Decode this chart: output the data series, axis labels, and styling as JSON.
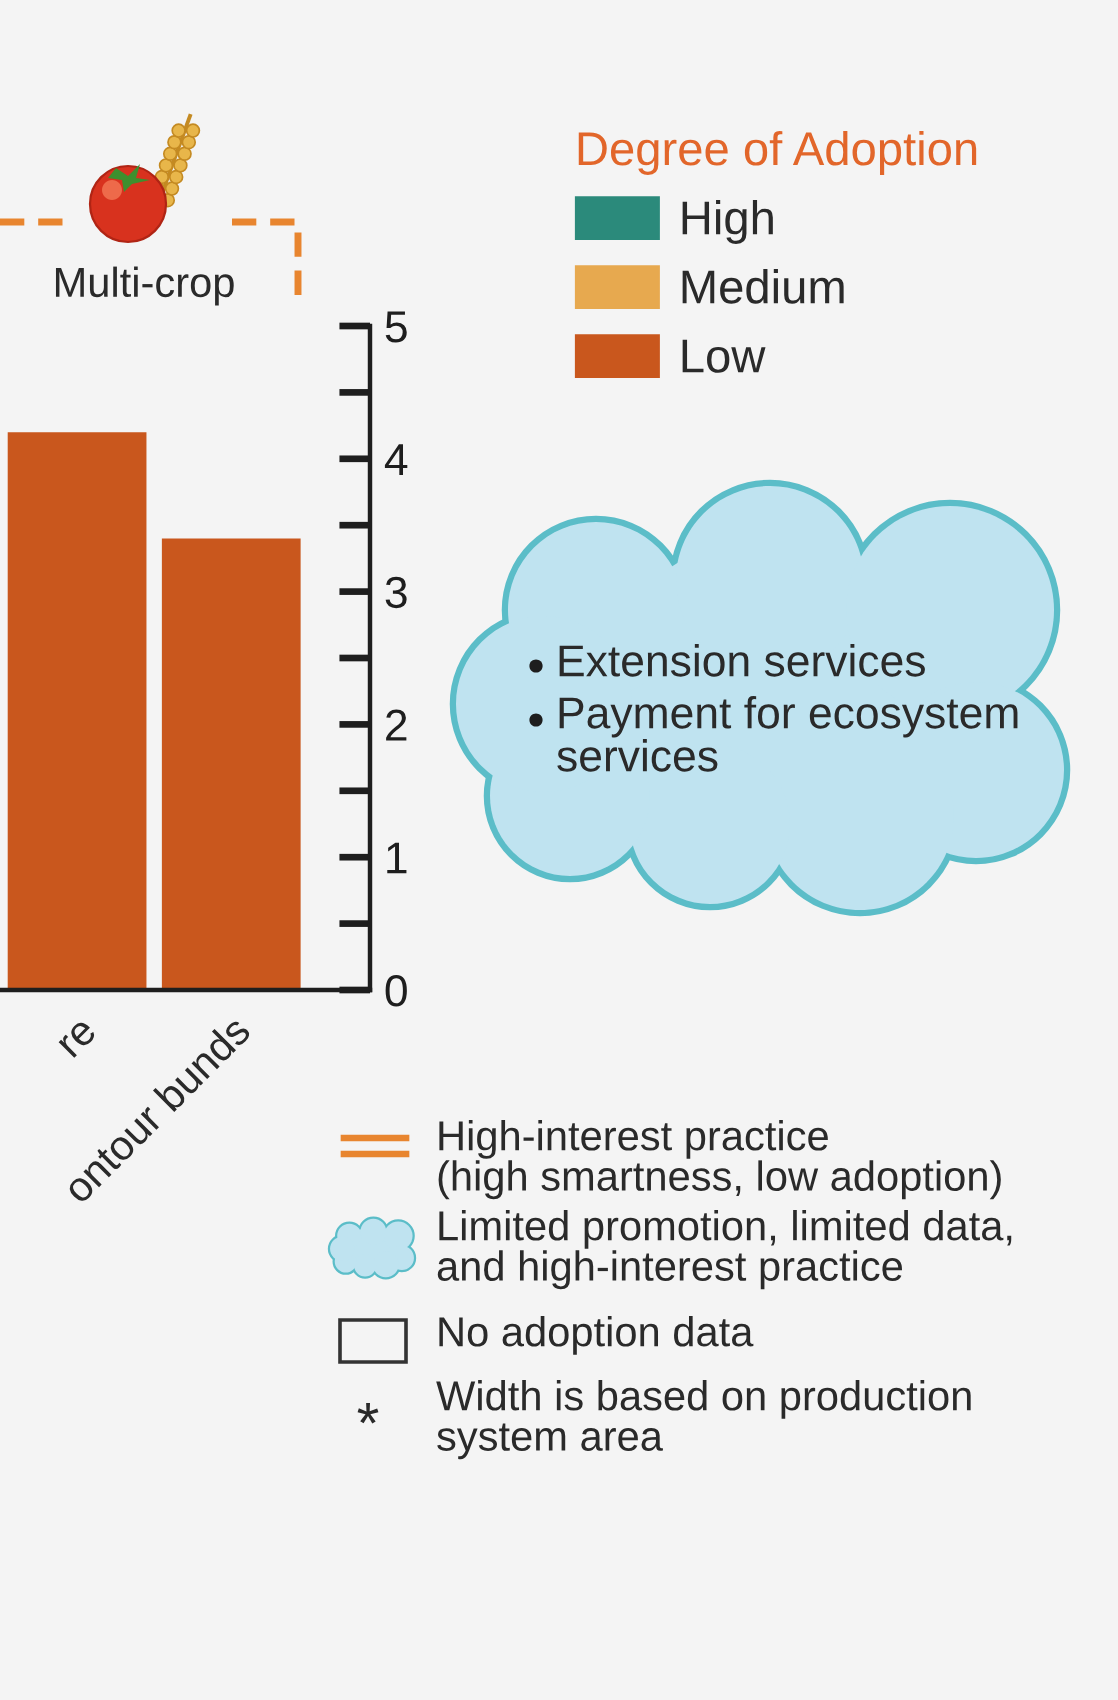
{
  "chart_data": {
    "type": "bar",
    "categories": [
      "re",
      "ontour bunds"
    ],
    "series": [
      {
        "name": "High",
        "color": "#2b8a7b",
        "values": [
          null,
          null
        ]
      },
      {
        "name": "Medium",
        "color": "#e7a94f",
        "values": [
          null,
          null
        ]
      },
      {
        "name": "Low",
        "color": "#c9571d",
        "values": [
          4.2,
          3.4
        ]
      }
    ],
    "legend_title": "Degree of Adoption",
    "legend": "top right",
    "ylim": [
      0,
      5
    ],
    "yticks": [
      0,
      {
        "value": 0.5,
        "label": null
      },
      1,
      {
        "value": 1.5,
        "label": null
      },
      2,
      {
        "value": 2.5,
        "label": null
      },
      3,
      {
        "value": 3.5,
        "label": null
      },
      4,
      {
        "value": 4.5,
        "label": null
      },
      5
    ],
    "annotations": [
      "Multi-crop",
      "Extension services",
      "Payment for ecosystem\nservices",
      "High-interest practice\n(high smartness, low adoption)",
      "Limited promotion, limited data,\nand high-interest practice",
      "No adoption data",
      "*",
      "Width is based on production\nsystem area"
    ]
  }
}
